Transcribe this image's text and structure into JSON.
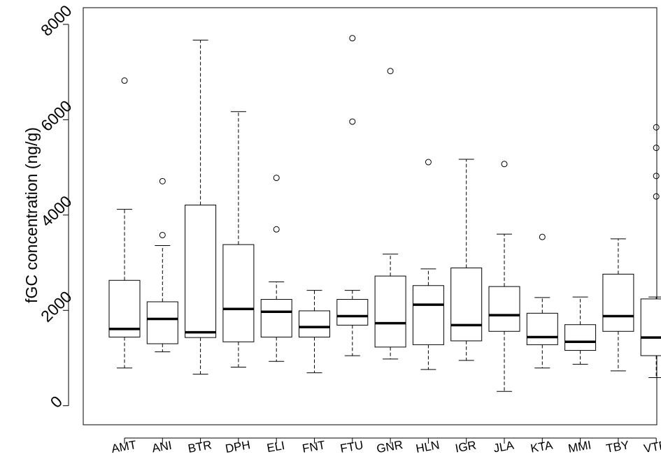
{
  "chart_data": {
    "type": "box",
    "title": "",
    "xlabel": "",
    "ylabel": "fGC concentration (ng/g)",
    "ylim": [
      -400,
      8350
    ],
    "yticks": [
      0,
      2000,
      4000,
      6000,
      8000
    ],
    "yticklabels": [
      "0",
      "2000",
      "4000",
      "6000",
      "8000"
    ],
    "grid": false,
    "categories": [
      "AMT",
      "ANI",
      "BTR",
      "DPH",
      "ELI",
      "FNT",
      "FTU",
      "GNR",
      "HLN",
      "IGR",
      "JLA",
      "KTA",
      "MMI",
      "TBY",
      "VTR"
    ],
    "boxes": [
      {
        "min": 790,
        "q1": 1440,
        "median": 1610,
        "q3": 2630,
        "max": 4120,
        "outliers": [
          6820
        ]
      },
      {
        "min": 1130,
        "q1": 1300,
        "median": 1820,
        "q3": 2180,
        "max": 3360,
        "outliers": [
          3580,
          4710
        ]
      },
      {
        "min": 660,
        "q1": 1430,
        "median": 1540,
        "q3": 4210,
        "max": 7670,
        "outliers": []
      },
      {
        "min": 810,
        "q1": 1340,
        "median": 2030,
        "q3": 3380,
        "max": 6170,
        "outliers": []
      },
      {
        "min": 930,
        "q1": 1440,
        "median": 1970,
        "q3": 2230,
        "max": 2600,
        "outliers": [
          3700,
          4780
        ]
      },
      {
        "min": 690,
        "q1": 1440,
        "median": 1650,
        "q3": 1990,
        "max": 2420,
        "outliers": []
      },
      {
        "min": 1050,
        "q1": 1690,
        "median": 1880,
        "q3": 2230,
        "max": 2420,
        "outliers": [
          5960,
          7710
        ]
      },
      {
        "min": 980,
        "q1": 1230,
        "median": 1730,
        "q3": 2720,
        "max": 3180,
        "outliers": [
          7020
        ]
      },
      {
        "min": 760,
        "q1": 1280,
        "median": 2120,
        "q3": 2520,
        "max": 2870,
        "outliers": [
          5110
        ]
      },
      {
        "min": 950,
        "q1": 1360,
        "median": 1690,
        "q3": 2890,
        "max": 5170,
        "outliers": []
      },
      {
        "min": 300,
        "q1": 1560,
        "median": 1900,
        "q3": 2500,
        "max": 3600,
        "outliers": [
          5070
        ]
      },
      {
        "min": 790,
        "q1": 1280,
        "median": 1440,
        "q3": 1940,
        "max": 2270,
        "outliers": [
          3540
        ]
      },
      {
        "min": 870,
        "q1": 1160,
        "median": 1340,
        "q3": 1700,
        "max": 2280,
        "outliers": []
      },
      {
        "min": 730,
        "q1": 1560,
        "median": 1880,
        "q3": 2760,
        "max": 3500,
        "outliers": []
      },
      {
        "min": 590,
        "q1": 1050,
        "median": 1430,
        "q3": 2240,
        "max": 2280,
        "outliers": [
          4390,
          4820,
          5410,
          5840
        ]
      }
    ]
  }
}
